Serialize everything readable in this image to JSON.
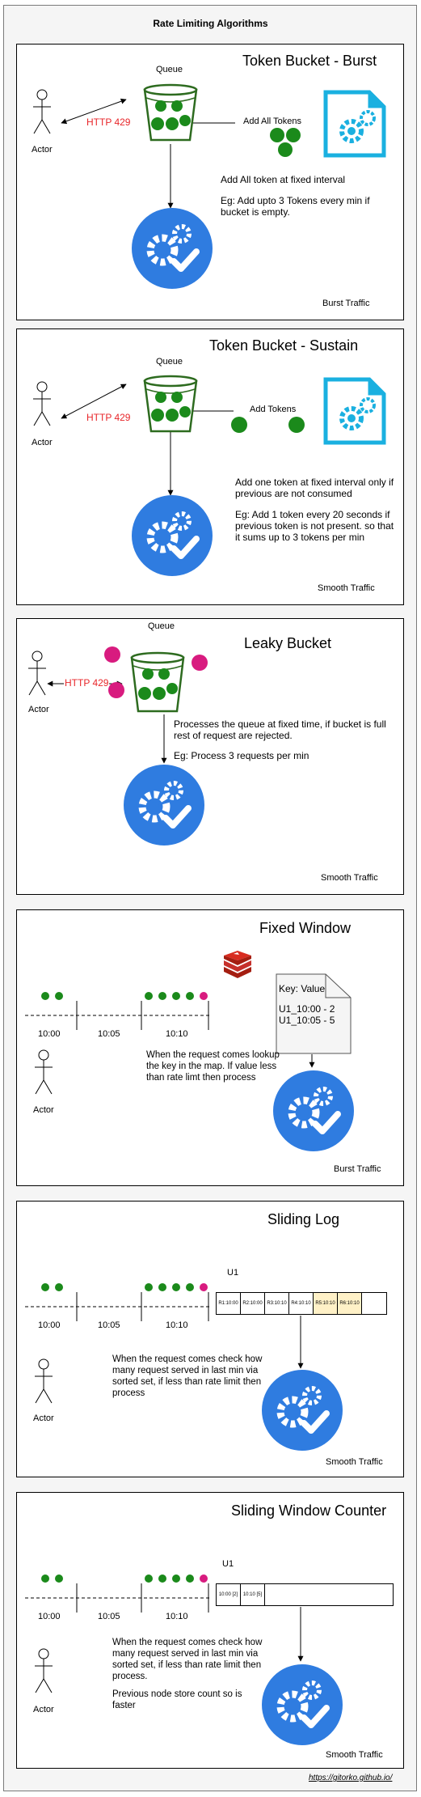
{
  "title": "Rate Limiting Algorithms",
  "footer_link": "https://gitorko.github.io/",
  "colors": {
    "green_token": "#1b8a1b",
    "green_stroke": "#2d6b1f",
    "magenta_request": "#d81b7f",
    "server_blue": "#2f7ce0",
    "doc_cyan": "#1ab0e0",
    "http_red": "#e8262a",
    "highlight_cell": "#fff1c7"
  },
  "panels": [
    {
      "title": "Token Bucket - Burst",
      "queue_label": "Queue",
      "actor_label": "Actor",
      "http_label": "HTTP 429",
      "arrow_label": "Add All Tokens",
      "description": "Add All token at fixed interval",
      "example": "Eg: Add upto 3 Tokens every min if bucket is empty.",
      "traffic": "Burst Traffic"
    },
    {
      "title": "Token Bucket - Sustain",
      "queue_label": "Queue",
      "actor_label": "Actor",
      "http_label": "HTTP 429",
      "arrow_label": "Add Tokens",
      "description": "Add one token at fixed interval only if previous are not consumed",
      "example": "Eg: Add 1 token every 20 seconds if previous token is not present. so that it sums up to 3 tokens per min",
      "traffic": "Smooth Traffic"
    },
    {
      "title": "Leaky Bucket",
      "queue_label": "Queue",
      "actor_label": "Actor",
      "http_label": "HTTP 429",
      "description": "Processes the queue at fixed time, if bucket is full rest of request are rejected.",
      "example": "Eg: Process 3 requests per min",
      "traffic": "Smooth Traffic"
    },
    {
      "title": "Fixed Window",
      "actor_label": "Actor",
      "times": [
        "10:00",
        "10:05",
        "10:10"
      ],
      "note_title": "Key: Value",
      "note_lines": [
        "U1_10:00 - 2",
        "U1_10:05 - 5"
      ],
      "description": "When the request comes lookup the key in the map. If value less than rate limt then process",
      "traffic": "Burst Traffic"
    },
    {
      "title": "Sliding Log",
      "actor_label": "Actor",
      "times": [
        "10:00",
        "10:05",
        "10:10"
      ],
      "user_label": "U1",
      "log_cells": [
        "R1:10:00",
        "R2:10:00",
        "R3:10:10",
        "R4:10:10",
        "R5:10:10",
        "R6:10:10",
        ""
      ],
      "description": "When the request comes check how many request served in last min via sorted set, if less than rate limit then process",
      "traffic": "Smooth Traffic"
    },
    {
      "title": "Sliding Window Counter",
      "actor_label": "Actor",
      "times": [
        "10:00",
        "10:05",
        "10:10"
      ],
      "user_label": "U1",
      "counter_cells": [
        "10:00 [2]",
        "10:10 [5]",
        ""
      ],
      "description": "When the request comes check how many request served in last min via sorted set, if less than rate limit then process.",
      "description_2": "Previous node store count so is faster",
      "traffic": "Smooth Traffic"
    }
  ]
}
